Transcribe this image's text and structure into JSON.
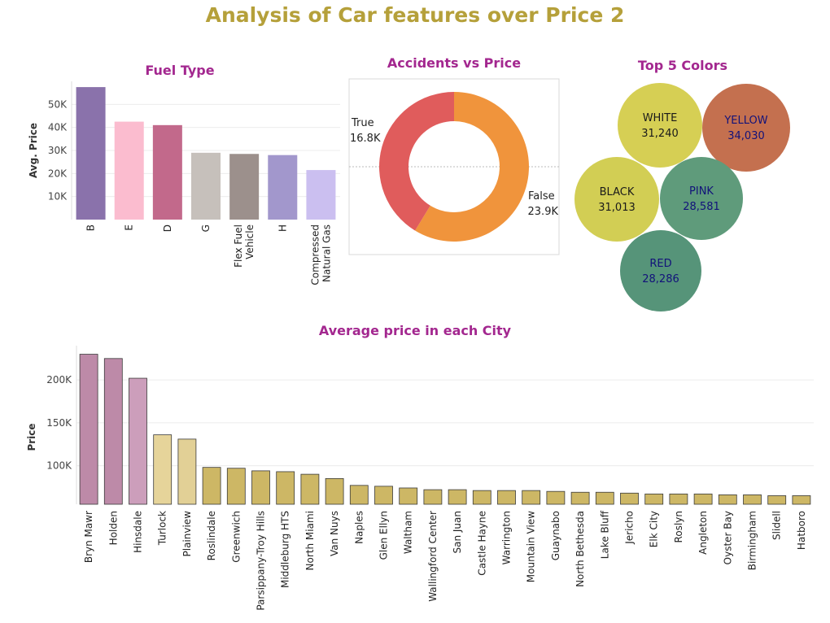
{
  "dashboard_title": "Analysis of Car features over Price 2",
  "chart_data": [
    {
      "type": "bar",
      "title": "Fuel Type",
      "xlabel": "",
      "ylabel": "Avg. Price",
      "ylim": [
        0,
        60000
      ],
      "y_ticks": [
        10000,
        20000,
        30000,
        40000,
        50000
      ],
      "y_tick_labels": [
        "10K",
        "20K",
        "30K",
        "40K",
        "50K"
      ],
      "grid": true,
      "categories": [
        "B",
        "E",
        "D",
        "G",
        "Flex Fuel Vehicle",
        "H",
        "Compressed Natural Gas"
      ],
      "category_label_lines": [
        [
          "B"
        ],
        [
          "E"
        ],
        [
          "D"
        ],
        [
          "G"
        ],
        [
          "Flex Fuel",
          "Vehicle"
        ],
        [
          "H"
        ],
        [
          "Compressed",
          "Natural Gas"
        ]
      ],
      "values": [
        57500,
        42500,
        41000,
        29000,
        28500,
        28000,
        21500
      ],
      "colors": [
        "#8a72ab",
        "#fbbccf",
        "#c2698b",
        "#c6c0bb",
        "#9c908c",
        "#a297cc",
        "#cbbff0"
      ]
    },
    {
      "type": "pie",
      "title": "Accidents vs Price",
      "donut": true,
      "categories": [
        "False",
        "True"
      ],
      "values": [
        23900,
        16800
      ],
      "value_labels": [
        "23.9K",
        "16.8K"
      ],
      "colors": [
        "#f0943c",
        "#e05c5c"
      ]
    },
    {
      "type": "scatter",
      "title": "Top 5 Colors",
      "bubbles": [
        {
          "label": "WHITE",
          "value": 31240,
          "value_label": "31,240",
          "color": "#d6cf54"
        },
        {
          "label": "YELLOW",
          "value": 34030,
          "value_label": "34,030",
          "color": "#c4704f"
        },
        {
          "label": "BLACK",
          "value": 31013,
          "value_label": "31,013",
          "color": "#d2ce54"
        },
        {
          "label": "PINK",
          "value": 28581,
          "value_label": "28,581",
          "color": "#5f9b7b"
        },
        {
          "label": "RED",
          "value": 28286,
          "value_label": "28,286",
          "color": "#569479"
        }
      ]
    },
    {
      "type": "bar",
      "title": "Average price in each City",
      "xlabel": "",
      "ylabel": "Price",
      "ylim": [
        55000,
        240000
      ],
      "y_ticks": [
        100000,
        150000,
        200000
      ],
      "y_tick_labels": [
        "100K",
        "150K",
        "200K"
      ],
      "grid": true,
      "categories": [
        "Bryn Mawr",
        "Holden",
        "Hinsdale",
        "Turlock",
        "Plainview",
        "Roslindale",
        "Greenwich",
        "Parsippany-Troy Hills",
        "Middleburg HTS",
        "North Miami",
        "Van Nuys",
        "Naples",
        "Glen Ellyn",
        "Waltham",
        "Wallingford Center",
        "San Juan",
        "Castle Hayne",
        "Warrington",
        "Mountain View",
        "Guaynabo",
        "North Bethesda",
        "Lake Bluff",
        "Jericho",
        "Elk City",
        "Roslyn",
        "Angleton",
        "Oyster Bay",
        "Birmingham",
        "Slidell",
        "Hatboro"
      ],
      "values": [
        230000,
        225000,
        202000,
        136000,
        131000,
        98000,
        97000,
        94000,
        93000,
        90000,
        85000,
        77000,
        76000,
        74000,
        72000,
        72000,
        71000,
        71000,
        71000,
        70000,
        69000,
        69000,
        68000,
        67000,
        67000,
        67000,
        66000,
        66000,
        65000,
        65000
      ],
      "colors": [
        "#bd8aa8",
        "#bd8aa8",
        "#cc9ebb",
        "#e6d49a",
        "#e2d096",
        "#cdb765",
        "#cdb765",
        "#cdb765",
        "#cdb765",
        "#cdb765",
        "#cdb765",
        "#cdb765",
        "#cdb765",
        "#cdb765",
        "#cdb765",
        "#cdb765",
        "#cdb765",
        "#cdb765",
        "#cdb765",
        "#cdb765",
        "#cdb765",
        "#cdb765",
        "#cdb765",
        "#cdb765",
        "#cdb765",
        "#cdb765",
        "#cdb765",
        "#cdb765",
        "#cdb765",
        "#cdb765"
      ]
    }
  ]
}
